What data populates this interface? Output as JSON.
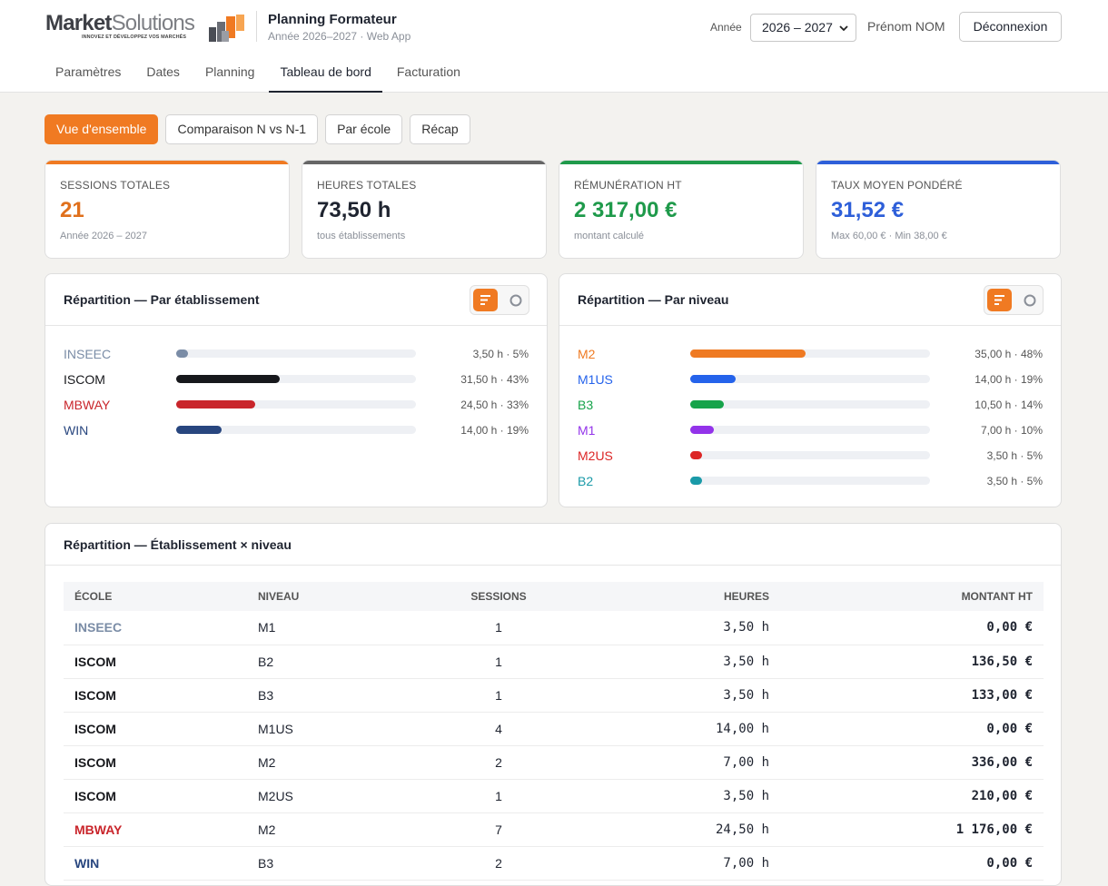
{
  "header": {
    "logo_main_bold": "Market",
    "logo_main_light": "Solutions",
    "logo_tagline": "INNOVEZ ET DÉVELOPPEZ VOS MARCHÉS",
    "app_title": "Planning Formateur",
    "app_subtitle": "Année 2026–2027 · Web App",
    "year_label": "Année",
    "year_value": "2026 – 2027",
    "user_name": "Prénom NOM",
    "logout_label": "Déconnexion"
  },
  "nav": {
    "items": [
      "Paramètres",
      "Dates",
      "Planning",
      "Tableau de bord",
      "Facturation"
    ],
    "active": "Tableau de bord"
  },
  "subtabs": {
    "items": [
      "Vue d'ensemble",
      "Comparaison N vs N-1",
      "Par école",
      "Récap"
    ],
    "active": "Vue d'ensemble"
  },
  "kpis": [
    {
      "label": "SESSIONS TOTALES",
      "value": "21",
      "sub": "Année 2026 – 2027",
      "color": "#e0701c"
    },
    {
      "label": "HEURES TOTALES",
      "value": "73,50 h",
      "sub": "tous établissements",
      "color": "#5c5c5c"
    },
    {
      "label": "RÉMUNÉRATION HT",
      "value": "2 317,00 €",
      "sub": "montant calculé",
      "color": "#1f9a4b"
    },
    {
      "label": "TAUX MOYEN PONDÉRÉ",
      "value": "31,52 €",
      "sub": "Max 60,00 € · Min 38,00 €",
      "color": "#2e5fd9"
    }
  ],
  "panel_etab": {
    "title": "Répartition — Par établissement",
    "rows": [
      {
        "label": "INSEEC",
        "value": "3,50 h · 5%",
        "pct": 5,
        "color": "#7a8ca6"
      },
      {
        "label": "ISCOM",
        "value": "31,50 h · 43%",
        "pct": 43,
        "color": "#17181c"
      },
      {
        "label": "MBWAY",
        "value": "24,50 h · 33%",
        "pct": 33,
        "color": "#c9252b"
      },
      {
        "label": "WIN",
        "value": "14,00 h · 19%",
        "pct": 19,
        "color": "#28467f"
      }
    ]
  },
  "panel_niveau": {
    "title": "Répartition — Par niveau",
    "rows": [
      {
        "label": "M2",
        "value": "35,00 h · 48%",
        "pct": 48,
        "color": "#ef7a22"
      },
      {
        "label": "M1US",
        "value": "14,00 h · 19%",
        "pct": 19,
        "color": "#2563eb"
      },
      {
        "label": "B3",
        "value": "10,50 h · 14%",
        "pct": 14,
        "color": "#16a34a"
      },
      {
        "label": "M1",
        "value": "7,00 h · 10%",
        "pct": 10,
        "color": "#9333ea"
      },
      {
        "label": "M2US",
        "value": "3,50 h · 5%",
        "pct": 5,
        "color": "#dc2626"
      },
      {
        "label": "B2",
        "value": "3,50 h · 5%",
        "pct": 5,
        "color": "#1a9aa8"
      }
    ]
  },
  "panel_table": {
    "title": "Répartition — Établissement × niveau",
    "columns": [
      "ÉCOLE",
      "NIVEAU",
      "SESSIONS",
      "HEURES",
      "MONTANT HT"
    ],
    "rows": [
      {
        "ecole": "INSEEC",
        "niveau": "M1",
        "sessions": "1",
        "heures": "3,50 h",
        "montant": "0,00 €",
        "color": "#7a8ca6"
      },
      {
        "ecole": "ISCOM",
        "niveau": "B2",
        "sessions": "1",
        "heures": "3,50 h",
        "montant": "136,50 €",
        "color": "#17181c"
      },
      {
        "ecole": "ISCOM",
        "niveau": "B3",
        "sessions": "1",
        "heures": "3,50 h",
        "montant": "133,00 €",
        "color": "#17181c"
      },
      {
        "ecole": "ISCOM",
        "niveau": "M1US",
        "sessions": "4",
        "heures": "14,00 h",
        "montant": "0,00 €",
        "color": "#17181c"
      },
      {
        "ecole": "ISCOM",
        "niveau": "M2",
        "sessions": "2",
        "heures": "7,00 h",
        "montant": "336,00 €",
        "color": "#17181c"
      },
      {
        "ecole": "ISCOM",
        "niveau": "M2US",
        "sessions": "1",
        "heures": "3,50 h",
        "montant": "210,00 €",
        "color": "#17181c"
      },
      {
        "ecole": "MBWAY",
        "niveau": "M2",
        "sessions": "7",
        "heures": "24,50 h",
        "montant": "1 176,00 €",
        "color": "#c9252b"
      },
      {
        "ecole": "WIN",
        "niveau": "B3",
        "sessions": "2",
        "heures": "7,00 h",
        "montant": "0,00 €",
        "color": "#28467f"
      }
    ]
  },
  "colors": {
    "accent": "#f07a22"
  }
}
